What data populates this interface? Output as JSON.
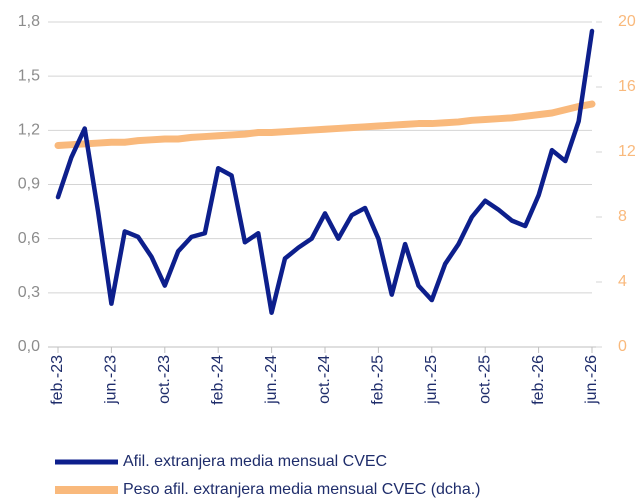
{
  "chart_data": {
    "type": "line",
    "categories": [
      "feb.-23",
      null,
      null,
      null,
      "jun.-23",
      null,
      null,
      null,
      "oct.-23",
      null,
      null,
      null,
      "feb.-24",
      null,
      null,
      null,
      "jun.-24",
      null,
      null,
      null,
      "oct.-24",
      null,
      null,
      null,
      "feb.-25",
      null,
      null,
      null,
      "jun.-25",
      null,
      null,
      null,
      "oct.-25",
      null,
      null,
      null,
      "feb.-26",
      null,
      null,
      null,
      "jun.-26"
    ],
    "series": [
      {
        "name": "Afil. extranjera media mensual CVEC",
        "color": "#0d1f8c",
        "axis": "y",
        "values": [
          0.83,
          1.05,
          1.21,
          0.75,
          0.24,
          0.64,
          0.61,
          0.5,
          0.34,
          0.53,
          0.61,
          0.63,
          0.99,
          0.95,
          0.58,
          0.63,
          0.19,
          0.49,
          0.55,
          0.6,
          0.74,
          0.6,
          0.73,
          0.77,
          0.6,
          0.29,
          0.57,
          0.34,
          0.26,
          0.46,
          0.57,
          0.72,
          0.81,
          0.76,
          0.7,
          0.67,
          0.84,
          1.09,
          1.03,
          1.25,
          1.75
        ]
      },
      {
        "name": "Peso afil. extranjera media mensual CVEC (dcha.)",
        "color": "#f9b97c",
        "axis": "y2",
        "values": [
          12.4,
          12.45,
          12.5,
          12.55,
          12.6,
          12.6,
          12.7,
          12.75,
          12.8,
          12.8,
          12.9,
          12.95,
          13.0,
          13.05,
          13.1,
          13.2,
          13.2,
          13.25,
          13.3,
          13.35,
          13.4,
          13.45,
          13.5,
          13.55,
          13.6,
          13.65,
          13.7,
          13.75,
          13.75,
          13.8,
          13.85,
          13.95,
          14.0,
          14.05,
          14.1,
          14.2,
          14.3,
          14.4,
          14.6,
          14.8,
          14.95
        ]
      }
    ],
    "ylim": [
      0,
      1.8
    ],
    "yticks": [
      {
        "value": 0,
        "label": "0,0"
      },
      {
        "value": 0.3,
        "label": "0,3"
      },
      {
        "value": 0.6,
        "label": "0,6"
      },
      {
        "value": 0.9,
        "label": "0,9"
      },
      {
        "value": 1.2,
        "label": "1,2"
      },
      {
        "value": 1.5,
        "label": "1,5"
      },
      {
        "value": 1.8,
        "label": "1,8"
      }
    ],
    "y2lim": [
      0,
      20
    ],
    "y2ticks": [
      0,
      4,
      8,
      12,
      16,
      20
    ],
    "grid": true,
    "legend": "bottom"
  }
}
